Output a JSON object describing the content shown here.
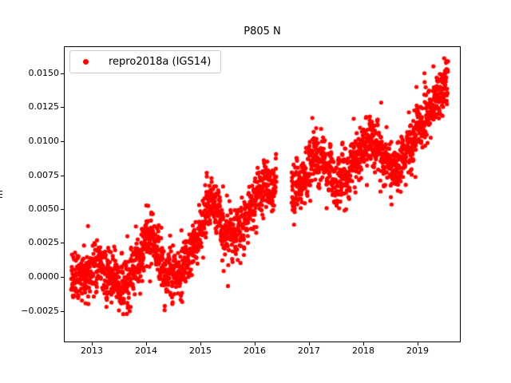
{
  "figure": {
    "background": "#ffffff"
  },
  "chart_data": {
    "type": "scatter",
    "title": "P805 N",
    "xlabel": "",
    "ylabel": "m",
    "series_name": "repro2018a (IGS14)",
    "color": "#ff0000",
    "marker_radius_px": 2.6,
    "grid": false,
    "legend_position": "upper left",
    "legend_border_color": "#cccccc",
    "xlim": [
      2012.485,
      2019.794
    ],
    "ylim": [
      -0.00482,
      0.017
    ],
    "x_ticks": [
      2013,
      2014,
      2015,
      2016,
      2017,
      2018,
      2019
    ],
    "x_tick_labels": [
      "2013",
      "2014",
      "2015",
      "2016",
      "2017",
      "2018",
      "2019"
    ],
    "y_ticks": [
      0.015,
      0.0125,
      0.01,
      0.0075,
      0.005,
      0.0025,
      0.0,
      -0.0025
    ],
    "y_tick_labels": [
      "0.0150",
      "0.0125",
      "0.0100",
      "0.0075",
      "0.0050",
      "0.0025",
      "0.0000",
      "−0.0025"
    ],
    "time_range": [
      2012.62,
      2019.56
    ],
    "gaps": [
      [
        2016.4,
        2016.68
      ]
    ],
    "points_per_year": 365,
    "noise_sigma": 0.00075,
    "ar_coeff": 0.6,
    "ar_sigma": 0.00045,
    "outlier_prob": 0.035,
    "outlier_scale": 2.4,
    "seed": 42,
    "trend_anchors": [
      [
        2012.62,
        -0.0003
      ],
      [
        2012.8,
        0.0001
      ],
      [
        2013.0,
        0.0006
      ],
      [
        2013.15,
        0.0009
      ],
      [
        2013.3,
        0.0001
      ],
      [
        2013.5,
        -0.0009
      ],
      [
        2013.65,
        -0.0008
      ],
      [
        2013.8,
        0.0004
      ],
      [
        2014.0,
        0.0026
      ],
      [
        2014.12,
        0.0034
      ],
      [
        2014.25,
        0.0014
      ],
      [
        2014.4,
        0.0006
      ],
      [
        2014.55,
        0.0002
      ],
      [
        2014.7,
        0.0009
      ],
      [
        2014.85,
        0.002
      ],
      [
        2015.0,
        0.0036
      ],
      [
        2015.15,
        0.0054
      ],
      [
        2015.3,
        0.0046
      ],
      [
        2015.45,
        0.0036
      ],
      [
        2015.6,
        0.0031
      ],
      [
        2015.75,
        0.004
      ],
      [
        2015.9,
        0.0051
      ],
      [
        2016.05,
        0.0063
      ],
      [
        2016.2,
        0.0071
      ],
      [
        2016.4,
        0.0068
      ],
      [
        2016.68,
        0.006
      ],
      [
        2016.8,
        0.0066
      ],
      [
        2016.95,
        0.0076
      ],
      [
        2017.1,
        0.0086
      ],
      [
        2017.22,
        0.0091
      ],
      [
        2017.35,
        0.0079
      ],
      [
        2017.5,
        0.0069
      ],
      [
        2017.65,
        0.0073
      ],
      [
        2017.8,
        0.0081
      ],
      [
        2017.95,
        0.0091
      ],
      [
        2018.1,
        0.0099
      ],
      [
        2018.25,
        0.0096
      ],
      [
        2018.4,
        0.0083
      ],
      [
        2018.55,
        0.0079
      ],
      [
        2018.7,
        0.0086
      ],
      [
        2018.85,
        0.0096
      ],
      [
        2019.0,
        0.0106
      ],
      [
        2019.15,
        0.0116
      ],
      [
        2019.3,
        0.0129
      ],
      [
        2019.45,
        0.0139
      ],
      [
        2019.56,
        0.0144
      ]
    ]
  }
}
